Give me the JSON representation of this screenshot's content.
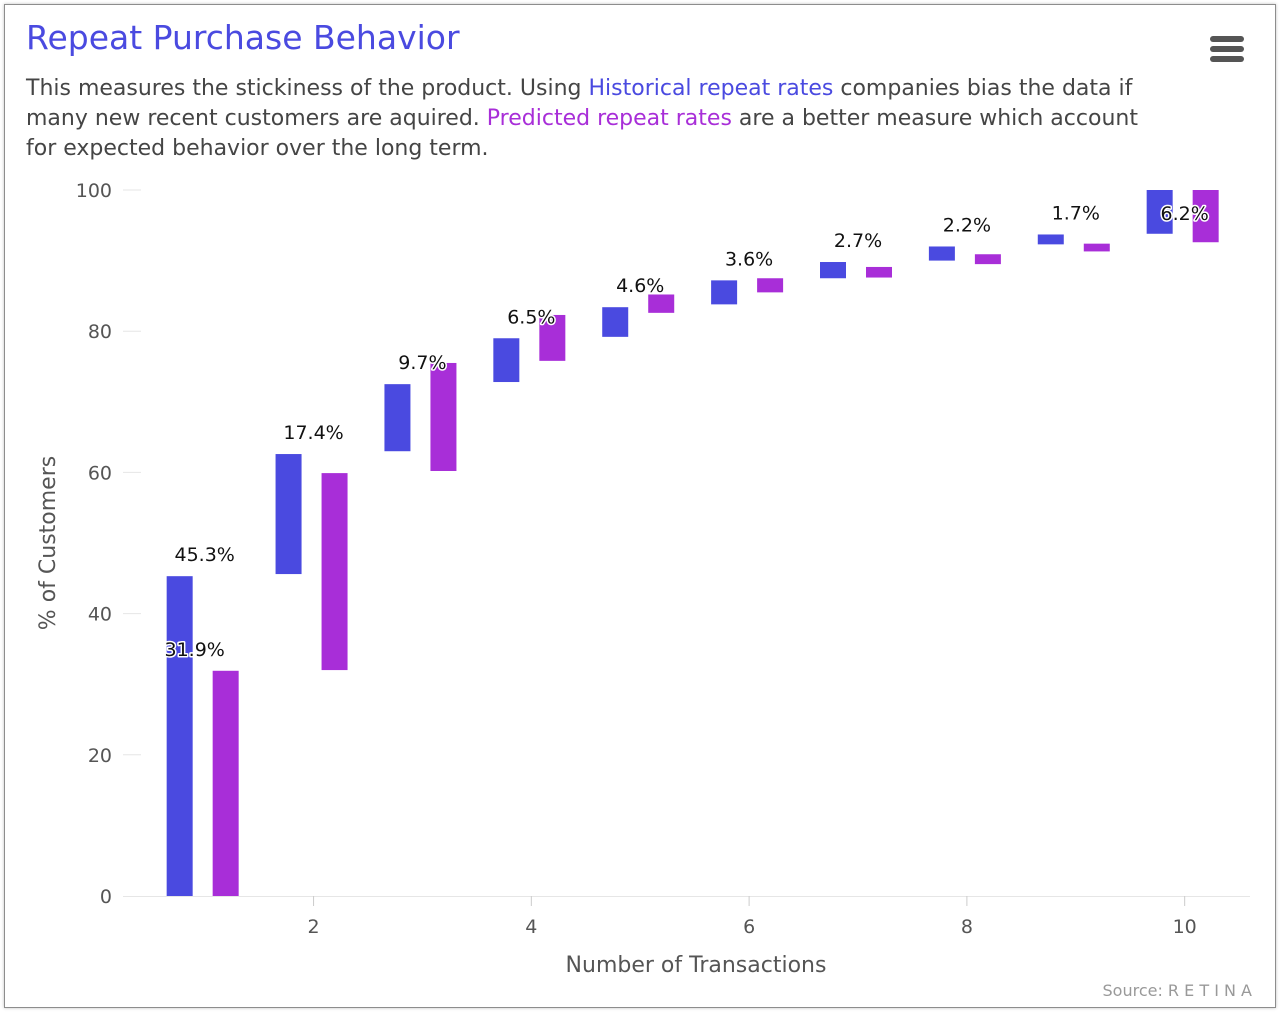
{
  "chart_data": {
    "type": "bar",
    "title": "Repeat Purchase Behavior",
    "subtitle": {
      "part1": "This measures the stickiness of the product. Using ",
      "historical_link": "Historical repeat rates",
      "part2": " companies bias the data if many new recent customers are aquired. ",
      "predicted_link": "Predicted repeat rates",
      "part3": " are a better measure which account for expected behavior over the long term."
    },
    "xlabel": "Number of Transactions",
    "ylabel": "% of Customers",
    "xlim": [
      0.25,
      10.6
    ],
    "ylim": [
      0,
      100
    ],
    "x_ticks": [
      2,
      4,
      6,
      8,
      10
    ],
    "y_ticks": [
      0,
      20,
      40,
      60,
      80,
      100
    ],
    "grid": "horizontal",
    "categories": [
      1,
      2,
      3,
      4,
      5,
      6,
      7,
      8,
      9,
      10
    ],
    "series": [
      {
        "key": "historical",
        "color": "#4a4ae0",
        "ranges": [
          [
            0,
            45.3
          ],
          [
            45.6,
            62.6
          ],
          [
            63.0,
            72.5
          ],
          [
            72.8,
            79.0
          ],
          [
            79.2,
            83.4
          ],
          [
            83.8,
            87.2
          ],
          [
            87.5,
            89.8
          ],
          [
            90.0,
            92.0
          ],
          [
            92.3,
            93.7
          ],
          [
            93.8,
            100
          ]
        ],
        "labels": [
          "45.3%",
          "17.4%",
          "9.7%",
          "6.5%",
          "4.6%",
          "3.6%",
          "2.7%",
          "2.2%",
          "1.7%",
          "6.2%"
        ]
      },
      {
        "key": "predicted",
        "color": "#a82ed8",
        "ranges": [
          [
            0,
            31.9
          ],
          [
            32.0,
            59.9
          ],
          [
            60.2,
            75.5
          ],
          [
            75.8,
            82.3
          ],
          [
            82.6,
            85.2
          ],
          [
            85.5,
            87.5
          ],
          [
            87.6,
            89.1
          ],
          [
            89.5,
            90.9
          ],
          [
            91.3,
            92.4
          ],
          [
            92.6,
            100
          ]
        ],
        "labels": [
          "31.9%"
        ]
      }
    ]
  },
  "menu_icon": "hamburger-menu-icon",
  "credits": "Source: R E T I N A"
}
